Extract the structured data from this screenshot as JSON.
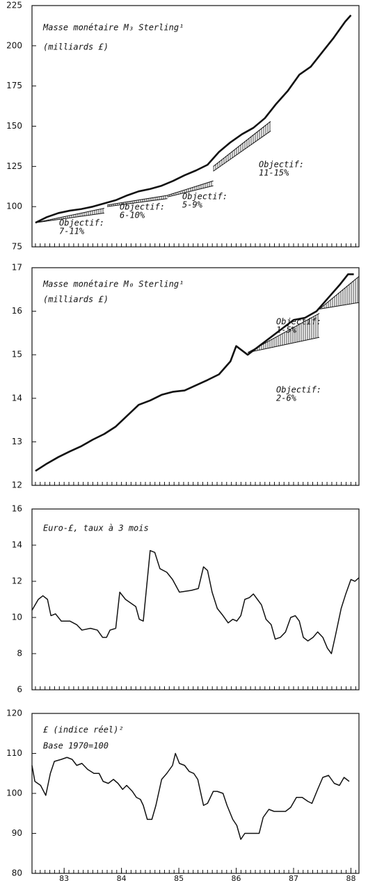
{
  "chart_data": [
    {
      "type": "line",
      "title": "Masse monétaire M₃ Sterling¹",
      "subtitle": "(milliards £)",
      "x": [
        83.0,
        83.2,
        83.4,
        83.6,
        83.8,
        84.0,
        84.2,
        84.4,
        84.6,
        84.8,
        85.0,
        85.2,
        85.4,
        85.6,
        85.8,
        86.0,
        86.2,
        86.4,
        86.6,
        86.8,
        87.0,
        87.2,
        87.4,
        87.6,
        87.8,
        88.0,
        88.2,
        88.4,
        88.5
      ],
      "series": [
        {
          "color": "#111111",
          "values": [
            90,
            93.5,
            96,
            97.5,
            98.5,
            100,
            102,
            104,
            107,
            109.5,
            111,
            113,
            116,
            119.5,
            122.5,
            126,
            134,
            140,
            145,
            149,
            155,
            164,
            172,
            182,
            187,
            196,
            205,
            215,
            219
          ]
        }
      ],
      "bands": [
        {
          "x": [
            83.0,
            84.2
          ],
          "lower": [
            90,
            96
          ],
          "upper": [
            90,
            99
          ]
        },
        {
          "x": [
            84.25,
            85.3
          ],
          "lower": [
            100,
            105
          ],
          "upper": [
            101,
            107
          ]
        },
        {
          "x": [
            85.3,
            86.1
          ],
          "lower": [
            106,
            113
          ],
          "upper": [
            107,
            116
          ]
        },
        {
          "x": [
            86.1,
            87.1
          ],
          "lower": [
            122,
            147
          ],
          "upper": [
            125,
            153
          ]
        }
      ],
      "annotations": [
        [
          "Objectif:",
          "7-11%"
        ],
        [
          "Objectif:",
          "6-10%"
        ],
        [
          "Objectif:",
          "5-9%"
        ],
        [
          "Objectif:",
          "11-15%"
        ]
      ],
      "xlim": [
        82.94,
        88.64
      ],
      "ylim": [
        75,
        225
      ],
      "yticks": [
        75,
        100,
        125,
        150,
        175,
        200,
        225
      ]
    },
    {
      "type": "line",
      "title": "Masse monétaire M₀ Sterling¹",
      "subtitle": "(milliards £)",
      "x": [
        83.0,
        83.2,
        83.4,
        83.6,
        83.8,
        84.0,
        84.2,
        84.4,
        84.6,
        84.8,
        85.0,
        85.2,
        85.4,
        85.6,
        85.8,
        86.0,
        86.2,
        86.4,
        86.5,
        86.7,
        86.9,
        87.1,
        87.3,
        87.5,
        87.7,
        87.9,
        88.1,
        88.3,
        88.45,
        88.55
      ],
      "series": [
        {
          "color": "#111111",
          "values": [
            12.33,
            12.5,
            12.65,
            12.78,
            12.9,
            13.05,
            13.18,
            13.35,
            13.6,
            13.85,
            13.95,
            14.08,
            14.15,
            14.18,
            14.3,
            14.42,
            14.55,
            14.85,
            15.2,
            15.0,
            15.2,
            15.4,
            15.6,
            15.8,
            15.85,
            16.0,
            16.3,
            16.6,
            16.85,
            16.85
          ]
        }
      ],
      "bands": [
        {
          "x": [
            86.7,
            87.95
          ],
          "lower": [
            15.05,
            15.4
          ],
          "upper": [
            15.05,
            15.95
          ]
        },
        {
          "x": [
            87.95,
            88.64
          ],
          "lower": [
            16.05,
            16.2
          ],
          "upper": [
            16.05,
            16.8
          ]
        }
      ],
      "annotations": [
        [
          "Objectif:",
          "1-5%"
        ],
        [
          "Objectif:",
          "2-6%"
        ]
      ],
      "xlim": [
        82.94,
        88.64
      ],
      "ylim": [
        12,
        17
      ],
      "yticks": [
        12,
        13,
        14,
        15,
        16,
        17
      ]
    },
    {
      "type": "line",
      "title": "Euro-£, taux à 3 mois",
      "x": [
        82.94,
        83.05,
        83.13,
        83.21,
        83.27,
        83.35,
        83.45,
        83.6,
        83.72,
        83.81,
        83.96,
        84.08,
        84.17,
        84.24,
        84.3,
        84.4,
        84.47,
        84.57,
        84.75,
        84.81,
        84.88,
        85.0,
        85.08,
        85.17,
        85.29,
        85.39,
        85.51,
        85.72,
        85.84,
        85.93,
        86.0,
        86.08,
        86.17,
        86.27,
        86.36,
        86.44,
        86.51,
        86.58,
        86.65,
        86.73,
        86.8,
        86.87,
        86.94,
        87.02,
        87.11,
        87.18,
        87.27,
        87.36,
        87.45,
        87.53,
        87.6,
        87.67,
        87.75,
        87.84,
        87.92,
        88.01,
        88.09,
        88.16,
        88.23,
        88.33,
        88.41,
        88.5,
        88.57,
        88.64
      ],
      "series": [
        {
          "color": "#111111",
          "values": [
            10.4,
            11.0,
            11.2,
            11.0,
            10.1,
            10.2,
            9.8,
            9.8,
            9.6,
            9.3,
            9.4,
            9.3,
            8.9,
            8.9,
            9.3,
            9.4,
            11.4,
            11.0,
            10.6,
            9.9,
            9.8,
            13.7,
            13.6,
            12.7,
            12.5,
            12.1,
            11.4,
            11.5,
            11.6,
            12.8,
            12.6,
            11.4,
            10.5,
            10.1,
            9.7,
            9.9,
            9.8,
            10.1,
            11.0,
            11.1,
            11.3,
            11.0,
            10.7,
            9.9,
            9.6,
            8.8,
            8.9,
            9.2,
            10.0,
            10.1,
            9.8,
            8.9,
            8.7,
            8.9,
            9.2,
            8.9,
            8.3,
            8.0,
            9.0,
            10.5,
            11.3,
            12.1,
            12.0,
            12.2
          ]
        }
      ],
      "xlim": [
        82.94,
        88.64
      ],
      "ylim": [
        6,
        16
      ],
      "yticks": [
        6,
        8,
        10,
        12,
        14,
        16
      ]
    },
    {
      "type": "line",
      "title": "£ (indice réel)²",
      "subtitle": "Base 1970=100",
      "x": [
        82.94,
        82.99,
        83.09,
        83.18,
        83.26,
        83.33,
        83.45,
        83.55,
        83.64,
        83.72,
        83.81,
        83.91,
        84.02,
        84.11,
        84.18,
        84.27,
        84.36,
        84.44,
        84.52,
        84.59,
        84.69,
        84.76,
        84.83,
        84.88,
        84.95,
        85.03,
        85.1,
        85.2,
        85.29,
        85.39,
        85.44,
        85.51,
        85.6,
        85.68,
        85.76,
        85.83,
        85.93,
        86.0,
        86.1,
        86.17,
        86.27,
        86.34,
        86.44,
        86.51,
        86.58,
        86.65,
        86.8,
        86.9,
        86.97,
        87.07,
        87.16,
        87.26,
        87.36,
        87.45,
        87.55,
        87.65,
        87.75,
        87.82,
        87.92,
        88.01,
        88.11,
        88.21,
        88.3,
        88.38,
        88.47
      ],
      "series": [
        {
          "color": "#111111",
          "values": [
            107,
            103,
            102,
            99.5,
            105,
            108,
            108.5,
            109,
            108.5,
            107,
            107.5,
            106,
            105,
            105,
            103,
            102.5,
            103.5,
            102.5,
            101,
            102,
            100.5,
            99,
            98.5,
            97,
            93.5,
            93.5,
            97,
            103.5,
            105,
            107,
            110,
            107.5,
            107,
            105.5,
            105,
            103.5,
            97,
            97.5,
            100.5,
            100.5,
            100,
            97,
            93.5,
            92,
            88.5,
            90,
            90,
            90,
            94,
            96,
            95.5,
            95.5,
            95.5,
            96.5,
            99,
            99,
            98,
            97.5,
            101,
            104,
            104.5,
            102.5,
            102,
            104,
            103
          ]
        }
      ],
      "xlim": [
        82.94,
        88.64
      ],
      "ylim": [
        80,
        120
      ],
      "yticks": [
        80,
        90,
        100,
        110,
        120
      ],
      "xticks": [
        {
          "value": 83.5,
          "label": "83"
        },
        {
          "value": 84.5,
          "label": "84"
        },
        {
          "value": 85.5,
          "label": "85"
        },
        {
          "value": 86.5,
          "label": "86"
        },
        {
          "value": 87.5,
          "label": "87"
        },
        {
          "value": 88.5,
          "label": "88"
        }
      ]
    }
  ]
}
